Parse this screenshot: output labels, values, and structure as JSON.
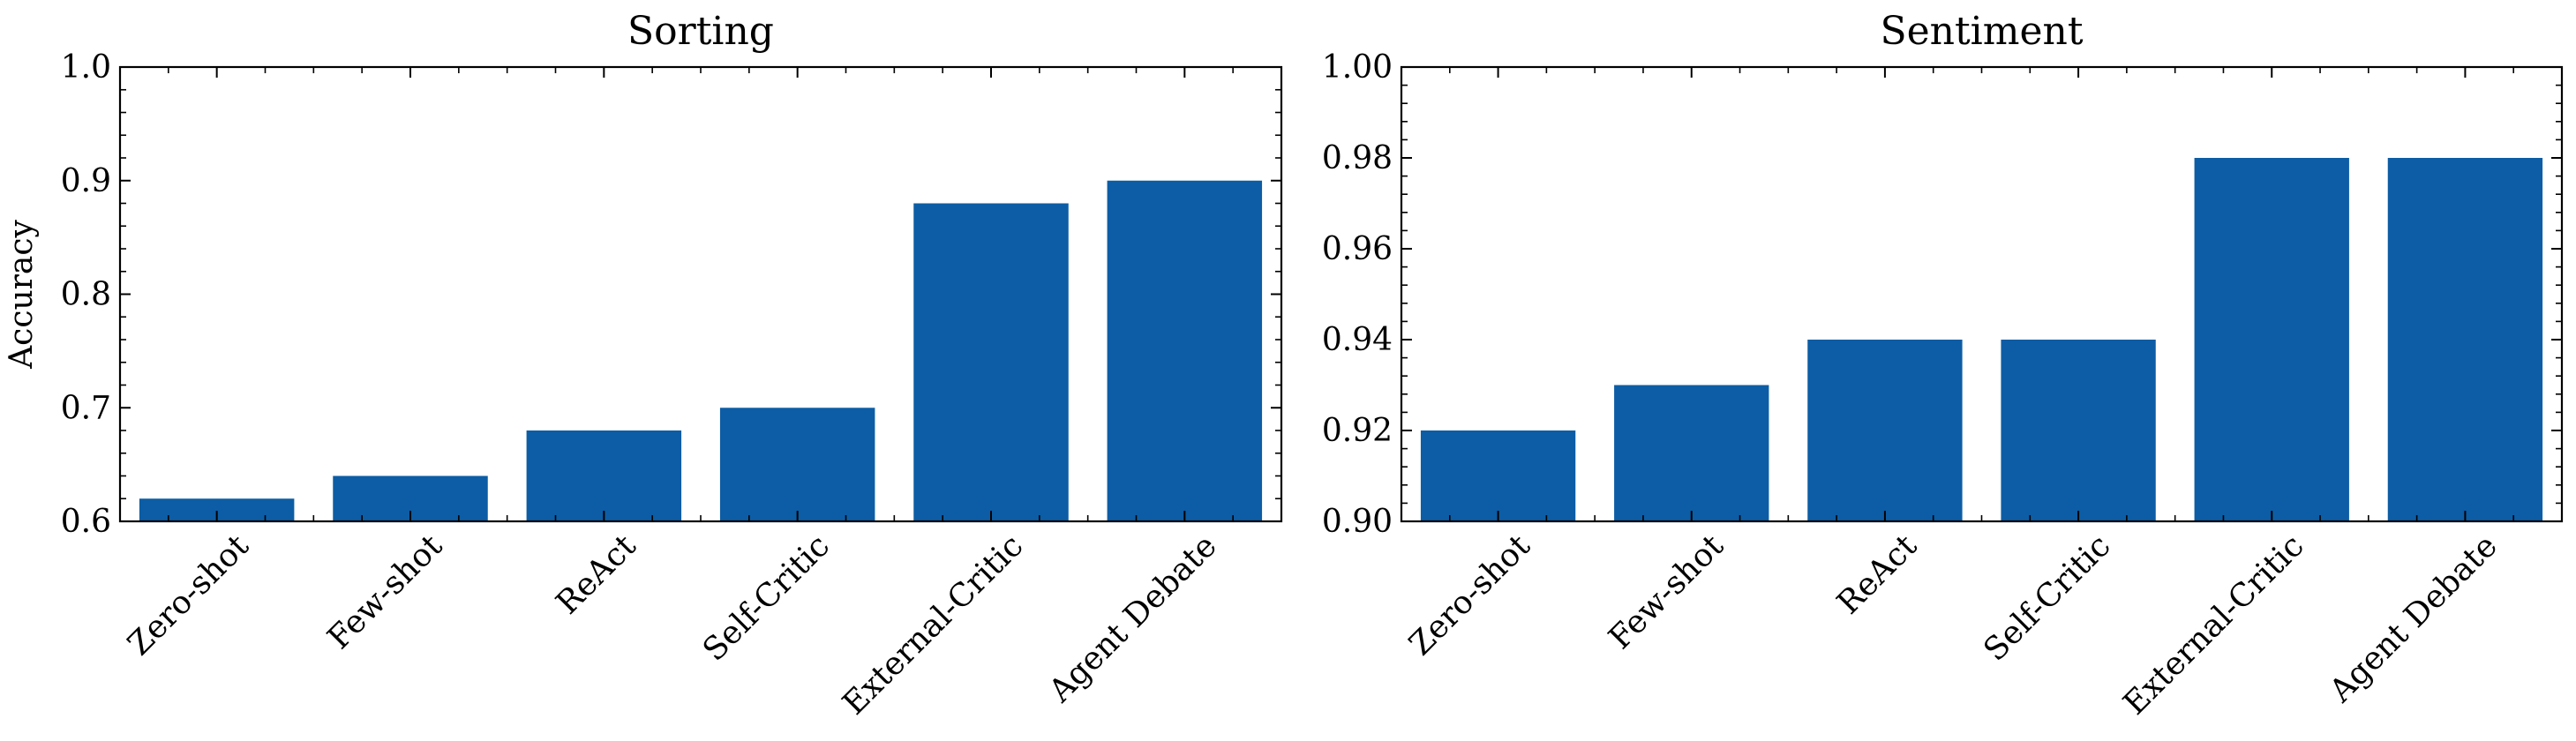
{
  "colors": {
    "bar": "#0c5da5",
    "axis": "#000000",
    "background": "#ffffff"
  },
  "chart_data": [
    {
      "type": "bar",
      "title": "Sorting",
      "xlabel": "",
      "ylabel": "Accuracy",
      "categories": [
        "Zero-shot",
        "Few-shot",
        "ReAct",
        "Self-Critic",
        "External-Critic",
        "Agent Debate"
      ],
      "values": [
        0.62,
        0.64,
        0.68,
        0.7,
        0.88,
        0.9
      ],
      "ylim": [
        0.6,
        1.0
      ],
      "yticks": [
        0.6,
        0.7,
        0.8,
        0.9,
        1.0
      ],
      "ytick_labels": [
        "0.6",
        "0.7",
        "0.8",
        "0.9",
        "1.0"
      ],
      "grid": false,
      "legend": "none"
    },
    {
      "type": "bar",
      "title": "Sentiment",
      "xlabel": "",
      "ylabel": "",
      "categories": [
        "Zero-shot",
        "Few-shot",
        "ReAct",
        "Self-Critic",
        "External-Critic",
        "Agent Debate"
      ],
      "values": [
        0.92,
        0.93,
        0.94,
        0.94,
        0.98,
        0.98
      ],
      "ylim": [
        0.9,
        1.0
      ],
      "yticks": [
        0.9,
        0.92,
        0.94,
        0.96,
        0.98,
        1.0
      ],
      "ytick_labels": [
        "0.90",
        "0.92",
        "0.94",
        "0.96",
        "0.98",
        "1.00"
      ],
      "grid": false,
      "legend": "none"
    }
  ]
}
